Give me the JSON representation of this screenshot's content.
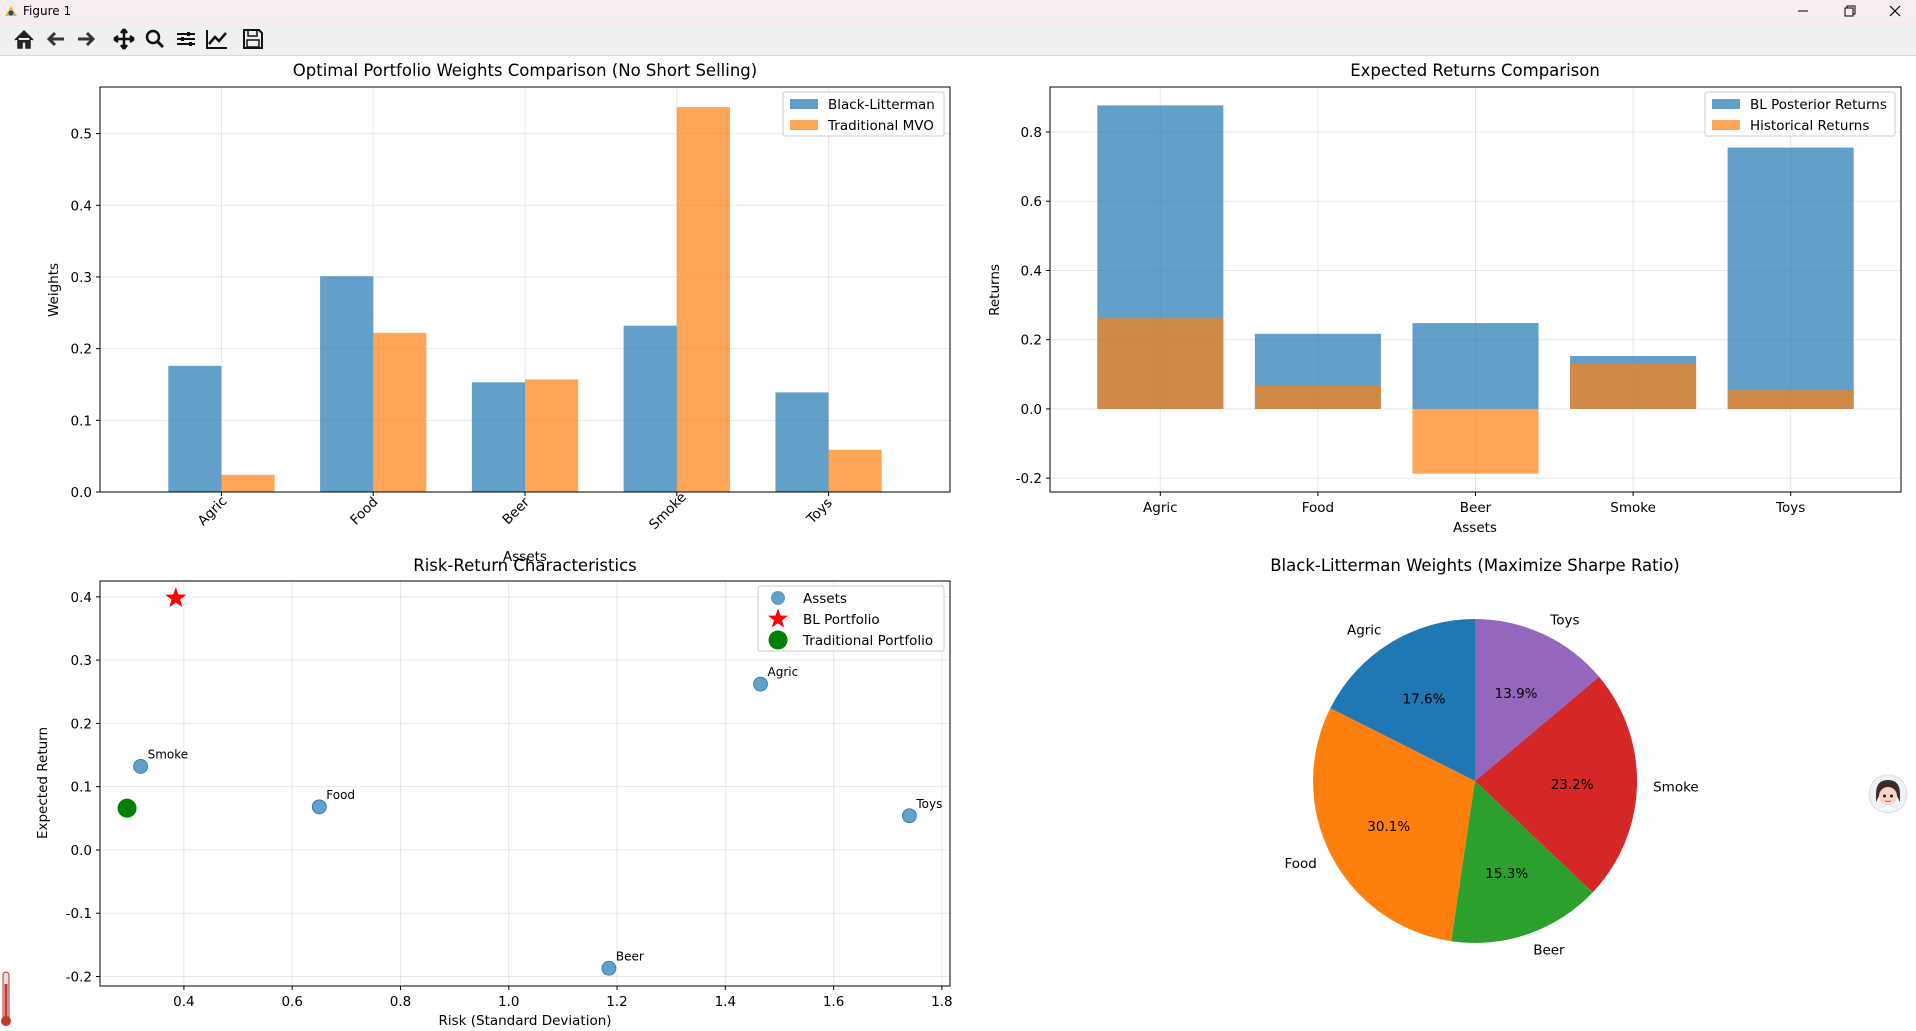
{
  "window": {
    "title": "Figure 1",
    "minimize_icon": "minimize-icon",
    "maximize_icon": "restore-icon",
    "close_icon": "close-icon"
  },
  "toolbar": {
    "buttons": [
      "home-icon",
      "back-arrow-icon",
      "forward-arrow-icon",
      "pan-move-icon",
      "zoom-magnifier-icon",
      "configure-subplots-icon",
      "edit-axis-icon",
      "save-icon"
    ]
  },
  "colors": {
    "blue": "#1f77b4",
    "orange": "#ff7f0e",
    "green": "#2ca02c",
    "red": "#d62728",
    "purple": "#9467bd",
    "star": "#ff0000",
    "trad_green": "#008000"
  },
  "chart_data": [
    {
      "type": "bar",
      "title": "Optimal Portfolio Weights Comparison (No Short Selling)",
      "xlabel": "Assets",
      "ylabel": "Weights",
      "categories": [
        "Agric",
        "Food",
        "Beer",
        "Smoke",
        "Toys"
      ],
      "series": [
        {
          "name": "Black-Litterman",
          "values": [
            0.176,
            0.301,
            0.153,
            0.232,
            0.139
          ]
        },
        {
          "name": "Traditional MVO",
          "values": [
            0.024,
            0.222,
            0.157,
            0.537,
            0.059
          ]
        }
      ],
      "ylim": [
        0,
        0.565
      ],
      "yticks": [
        "0.0",
        "0.1",
        "0.2",
        "0.3",
        "0.4",
        "0.5"
      ],
      "legend": "top-right",
      "grid": true
    },
    {
      "type": "bar",
      "title": "Expected Returns Comparison",
      "xlabel": "Assets",
      "ylabel": "Returns",
      "categories": [
        "Agric",
        "Food",
        "Beer",
        "Smoke",
        "Toys"
      ],
      "series": [
        {
          "name": "BL Posterior Returns",
          "values": [
            0.877,
            0.217,
            0.248,
            0.153,
            0.755
          ]
        },
        {
          "name": "Historical Returns",
          "values": [
            0.262,
            0.068,
            -0.187,
            0.132,
            0.054
          ]
        }
      ],
      "ylim": [
        -0.24,
        0.93
      ],
      "yticks": [
        "-0.2",
        "0.0",
        "0.2",
        "0.4",
        "0.6",
        "0.8"
      ],
      "legend": "top-right",
      "grid": true
    },
    {
      "type": "scatter",
      "title": "Risk-Return Characteristics",
      "xlabel": "Risk (Standard Deviation)",
      "ylabel": "Expected Return",
      "xlim": [
        0.245,
        1.815
      ],
      "ylim": [
        -0.215,
        0.425
      ],
      "xticks": [
        "0.4",
        "0.6",
        "0.8",
        "1.0",
        "1.2",
        "1.4",
        "1.6",
        "1.8"
      ],
      "yticks": [
        "-0.2",
        "-0.1",
        "0.0",
        "0.1",
        "0.2",
        "0.3",
        "0.4"
      ],
      "assets": [
        {
          "label": "Agric",
          "x": 1.465,
          "y": 0.262
        },
        {
          "label": "Food",
          "x": 0.65,
          "y": 0.068
        },
        {
          "label": "Beer",
          "x": 1.185,
          "y": -0.187
        },
        {
          "label": "Smoke",
          "x": 0.32,
          "y": 0.132
        },
        {
          "label": "Toys",
          "x": 1.74,
          "y": 0.054
        }
      ],
      "bl_portfolio": {
        "x": 0.385,
        "y": 0.398
      },
      "traditional_portfolio": {
        "x": 0.295,
        "y": 0.066
      },
      "legend_entries": [
        "Assets",
        "BL Portfolio",
        "Traditional Portfolio"
      ],
      "legend": "top-right",
      "grid": true
    },
    {
      "type": "pie",
      "title": "Black-Litterman Weights (Maximize Sharpe Ratio)",
      "labels": [
        "Agric",
        "Food",
        "Beer",
        "Smoke",
        "Toys"
      ],
      "values": [
        17.6,
        30.1,
        15.3,
        23.2,
        13.9
      ],
      "pct_labels": [
        "17.6%",
        "30.1%",
        "15.3%",
        "23.2%",
        "13.9%"
      ]
    }
  ]
}
